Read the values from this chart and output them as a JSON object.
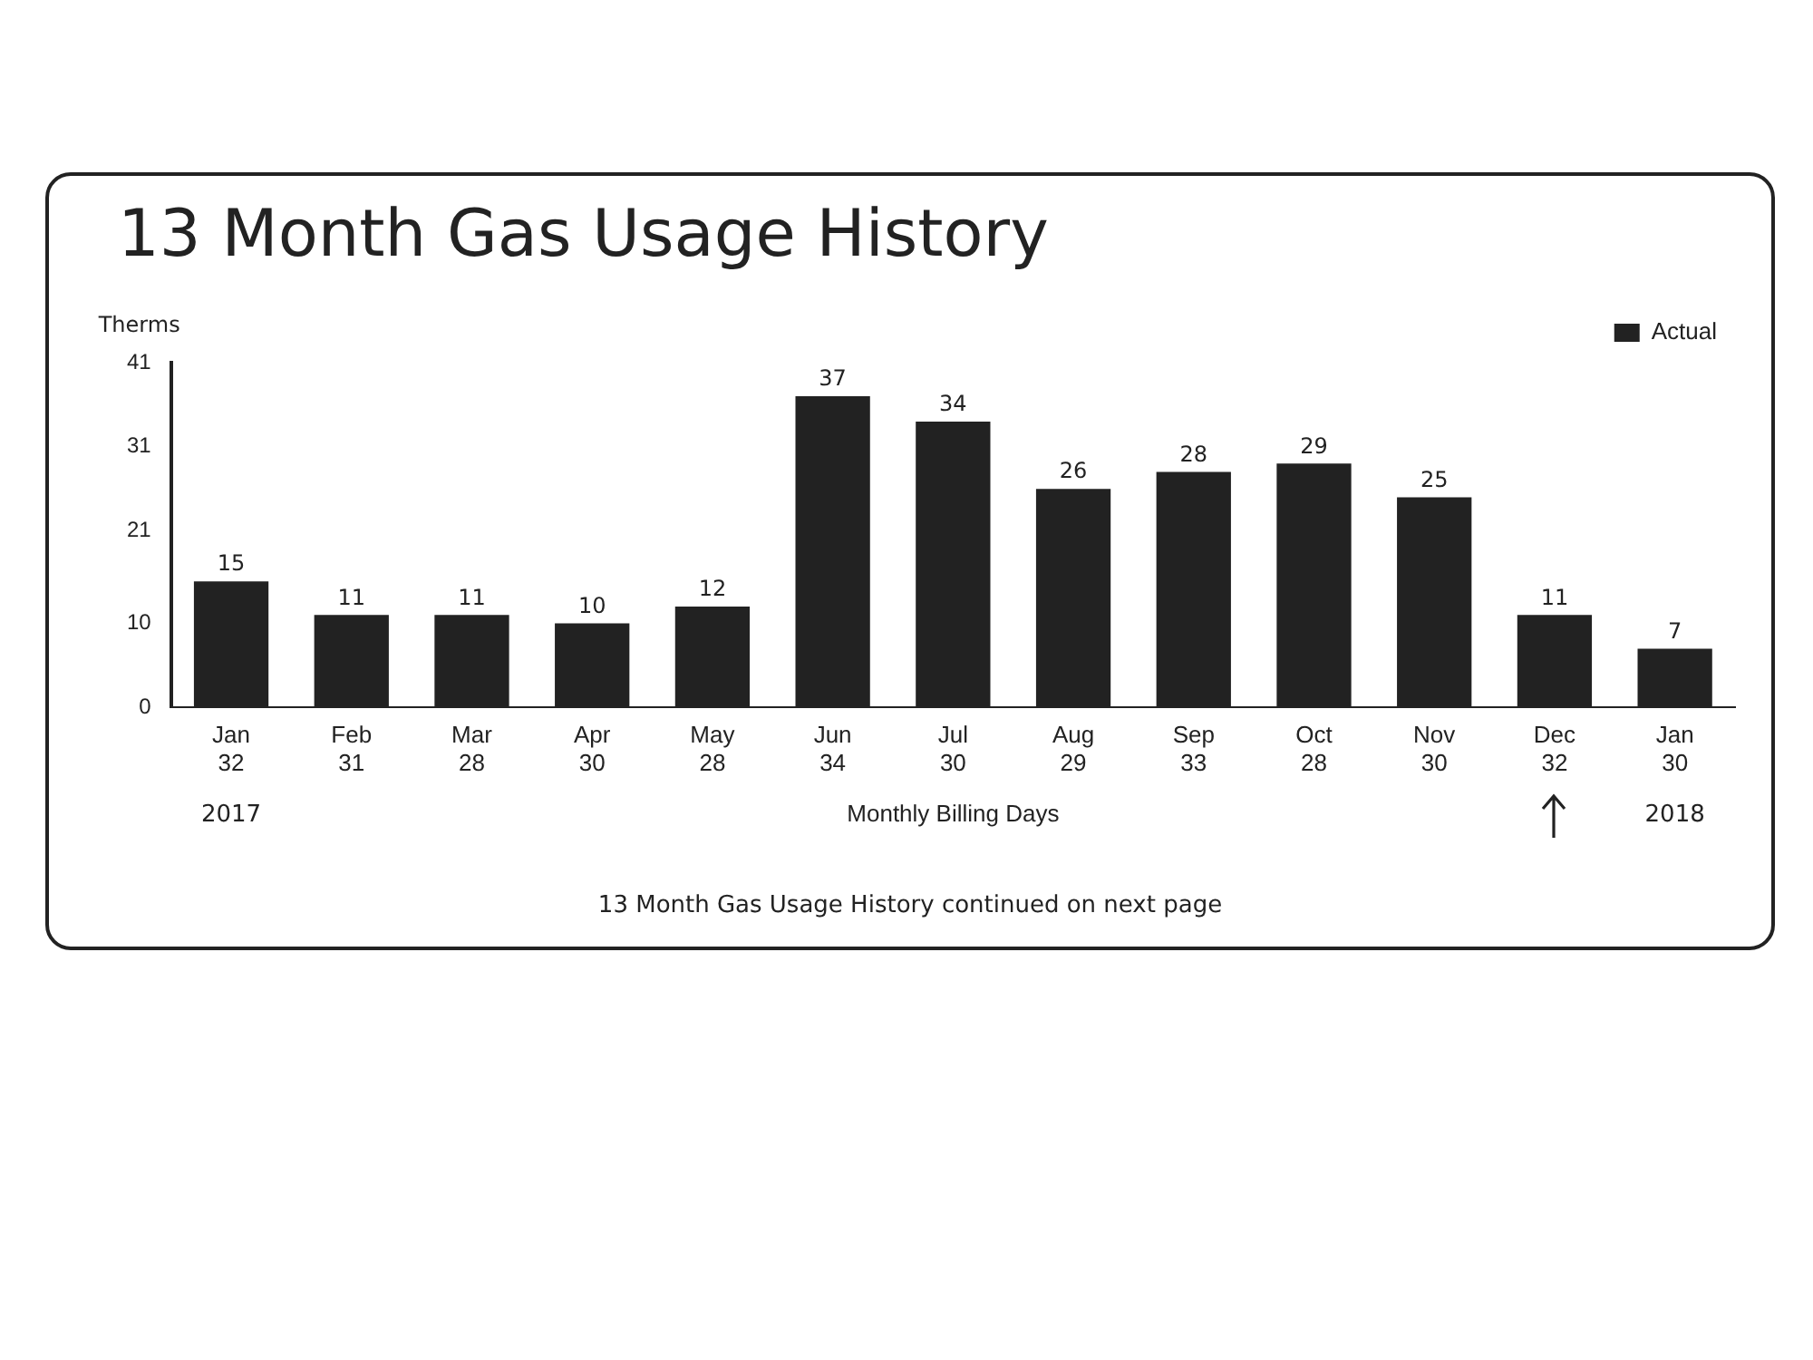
{
  "chart_data": {
    "type": "bar",
    "title": "13 Month Gas Usage History",
    "ylabel": "Therms",
    "xlabel": "Monthly Billing Days",
    "categories": [
      "Jan\n32",
      "Feb\n31",
      "Mar\n28",
      "Apr\n30",
      "May\n28",
      "Jun\n34",
      "Jul\n30",
      "Aug\n29",
      "Sep\n33",
      "Oct\n28",
      "Nov\n30",
      "Dec\n32",
      "Jan\n30"
    ],
    "series": [
      {
        "name": "Actual",
        "color": "#222222",
        "values": [
          15,
          11,
          11,
          10,
          12,
          37,
          34,
          26,
          28,
          29,
          25,
          11,
          7
        ]
      }
    ],
    "ylim": [
      0,
      41
    ],
    "yticks": [
      0,
      10,
      21,
      31,
      41
    ],
    "grid": false,
    "legend": "top right",
    "data_labels": true,
    "annotations": [
      "2017",
      "2018",
      "13 Month Gas Usage History continued on next page"
    ]
  }
}
